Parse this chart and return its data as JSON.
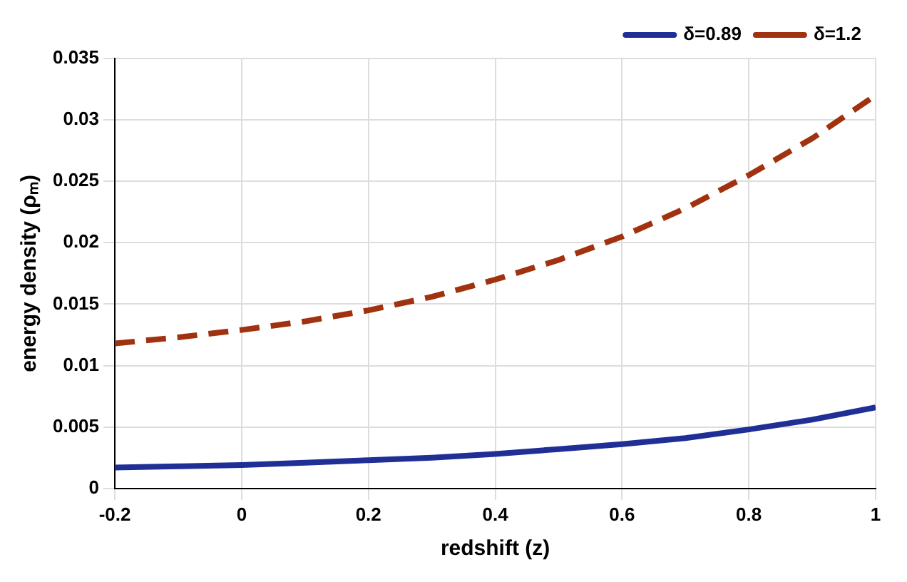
{
  "chart_data": {
    "type": "line",
    "xlabel": "redshift (z)",
    "ylabel": "energy density (ρₘ)",
    "x": [
      -0.2,
      -0.1,
      0,
      0.1,
      0.2,
      0.3,
      0.4,
      0.5,
      0.6,
      0.7,
      0.8,
      0.9,
      1
    ],
    "series": [
      {
        "name": "δ=0.89",
        "color": "#1f2f96",
        "line_style": "solid",
        "values": [
          0.0017,
          0.0018,
          0.0019,
          0.0021,
          0.0023,
          0.0025,
          0.0028,
          0.0032,
          0.0036,
          0.0041,
          0.0048,
          0.0056,
          0.0066
        ]
      },
      {
        "name": "δ=1.2",
        "color": "#a0320f",
        "line_style": "dashed",
        "values": [
          0.0118,
          0.0123,
          0.0129,
          0.0136,
          0.0145,
          0.0156,
          0.017,
          0.0186,
          0.0205,
          0.0228,
          0.0255,
          0.0285,
          0.032
        ]
      }
    ],
    "xlim": [
      -0.2,
      1
    ],
    "xticks": [
      -0.2,
      0,
      0.2,
      0.4,
      0.6,
      0.8,
      1
    ],
    "ylim": [
      0,
      0.035
    ],
    "yticks": [
      0,
      0.005,
      0.01,
      0.015,
      0.02,
      0.025,
      0.03,
      0.035
    ],
    "grid": true,
    "legend": "top right",
    "marker": "none"
  }
}
